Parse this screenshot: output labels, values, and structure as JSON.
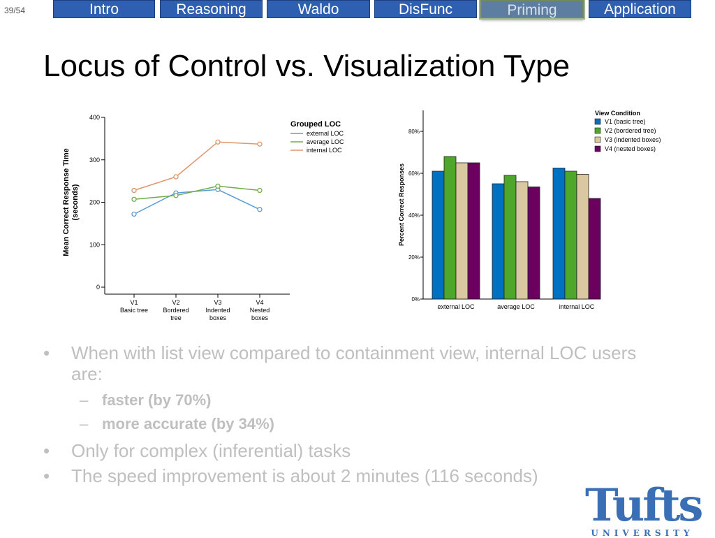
{
  "slide": {
    "counter": "39/54",
    "title": "Locus of Control vs. Visualization Type"
  },
  "nav": {
    "tabs": [
      {
        "label": "Intro",
        "active": false
      },
      {
        "label": "Reasoning",
        "active": false
      },
      {
        "label": "Waldo",
        "active": false
      },
      {
        "label": "DisFunc",
        "active": false
      },
      {
        "label": "Priming",
        "active": true
      },
      {
        "label": "Application",
        "active": false
      }
    ]
  },
  "chart_data": [
    {
      "type": "line",
      "ylabel": "Mean Correct Response Time (seconds)",
      "categories": [
        [
          "V1",
          "Basic tree"
        ],
        [
          "V2",
          "Bordered",
          "tree"
        ],
        [
          "V3",
          "Indented",
          "boxes"
        ],
        [
          "V4",
          "Nested",
          "boxes"
        ]
      ],
      "ylim": [
        0,
        400
      ],
      "yticks": [
        0,
        100,
        200,
        300,
        400
      ],
      "legend_title": "Grouped LOC",
      "legend_position": "top-right",
      "series": [
        {
          "name": "external LOC",
          "color": "#5b9bd5",
          "values": [
            172,
            222,
            230,
            183
          ]
        },
        {
          "name": "average LOC",
          "color": "#70ad47",
          "values": [
            207,
            216,
            238,
            228
          ]
        },
        {
          "name": "internal LOC",
          "color": "#e0956a",
          "values": [
            228,
            260,
            342,
            337
          ]
        }
      ]
    },
    {
      "type": "bar",
      "ylabel": "Percent Correct Responses",
      "categories": [
        "external LOC",
        "average LOC",
        "internal LOC"
      ],
      "ylim": [
        0,
        0.9
      ],
      "yticks": [
        "0%",
        "20%",
        "40%",
        "60%",
        "80%"
      ],
      "legend_title": "View Condition",
      "legend_position": "top-right",
      "series": [
        {
          "name": "V1 (basic tree)",
          "color": "#0070c0",
          "values": [
            0.61,
            0.55,
            0.625
          ]
        },
        {
          "name": "V2 (bordered tree)",
          "color": "#4ea72a",
          "values": [
            0.68,
            0.59,
            0.61
          ]
        },
        {
          "name": "V3 (indented boxes)",
          "color": "#dac8a0",
          "values": [
            0.65,
            0.56,
            0.595
          ]
        },
        {
          "name": "V4 (nested boxes)",
          "color": "#6b005e",
          "values": [
            0.65,
            0.535,
            0.48
          ]
        }
      ]
    }
  ],
  "bullets": [
    {
      "text": "When with list view compared to containment view, internal LOC users are:",
      "sub": [
        "faster (by 70%)",
        "more accurate (by 34%)"
      ]
    },
    {
      "text": "Only for complex (inferential) tasks",
      "sub": []
    },
    {
      "text": "The speed improvement is about 2 minutes (116 seconds)",
      "sub": []
    }
  ],
  "logo": {
    "word": "Tufts",
    "sub": "UNIVERSITY"
  }
}
